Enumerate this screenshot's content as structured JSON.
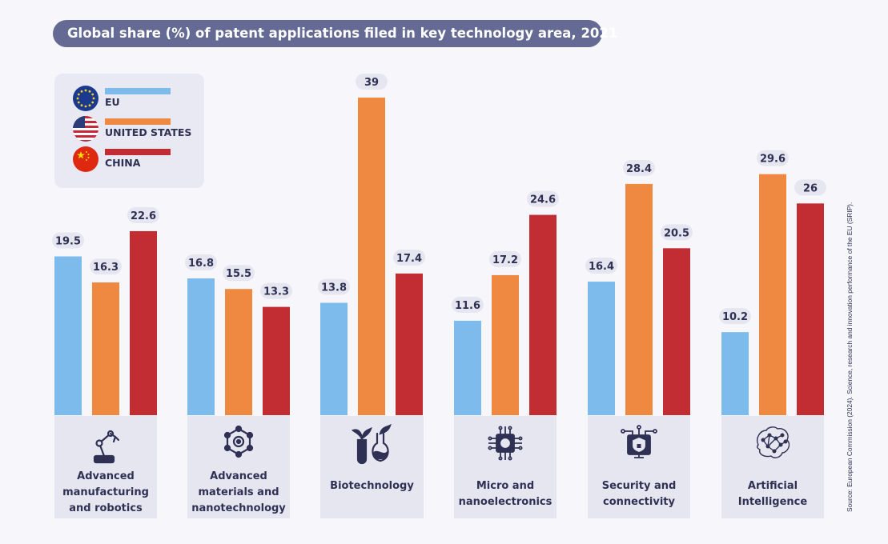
{
  "title": "Global share (%) of patent applications filed in key technology area, 2021",
  "source": "Source: European Commission (2024). Science, research and innovation performance of the EU (SRIP).",
  "colors": {
    "eu": "#7cbbeb",
    "us": "#ef8841",
    "china": "#c12d33",
    "pill": "#e6e6f1",
    "text": "#2f3154"
  },
  "legend": [
    {
      "label": "EU",
      "color": "#7cbbeb",
      "flag_icon": "eu-flag-icon"
    },
    {
      "label": "UNITED STATES",
      "color": "#ef8841",
      "flag_icon": "us-flag-icon"
    },
    {
      "label": "CHINA",
      "color": "#c12d33",
      "flag_icon": "china-flag-icon"
    }
  ],
  "categories": [
    {
      "label_lines": [
        "Advanced",
        "manufacturing",
        "and robotics"
      ],
      "icon": "robot-arm-icon"
    },
    {
      "label_lines": [
        "Advanced",
        "materials and",
        "nanotechnology"
      ],
      "icon": "molecule-icon"
    },
    {
      "label_lines": [
        "Biotechnology"
      ],
      "icon": "plant-flask-icon"
    },
    {
      "label_lines": [
        "Micro and",
        "nanoelectronics"
      ],
      "icon": "microchip-icon"
    },
    {
      "label_lines": [
        "Security and",
        "connectivity"
      ],
      "icon": "shield-monitor-icon"
    },
    {
      "label_lines": [
        "Artificial",
        "Intelligence"
      ],
      "icon": "brain-network-icon"
    }
  ],
  "chart_data": {
    "type": "bar",
    "title": "Global share (%) of patent applications filed in key technology area, 2021",
    "categories": [
      "Advanced manufacturing and robotics",
      "Advanced materials and nanotechnology",
      "Biotechnology",
      "Micro and nanoelectronics",
      "Security and connectivity",
      "Artificial Intelligence"
    ],
    "series": [
      {
        "name": "EU",
        "color": "#7cbbeb",
        "values": [
          19.5,
          16.8,
          13.8,
          11.6,
          16.4,
          10.2
        ]
      },
      {
        "name": "UNITED STATES",
        "color": "#ef8841",
        "values": [
          16.3,
          15.5,
          39,
          17.2,
          28.4,
          29.6
        ]
      },
      {
        "name": "CHINA",
        "color": "#c12d33",
        "values": [
          22.6,
          13.3,
          17.4,
          24.6,
          20.5,
          26
        ]
      }
    ],
    "ylim": [
      0,
      39
    ],
    "grid": false,
    "legend_position": "top-left",
    "data_labels": true
  }
}
